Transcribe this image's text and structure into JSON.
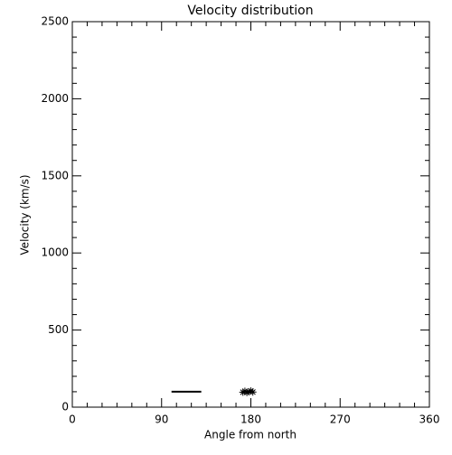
{
  "chart_data": {
    "type": "scatter",
    "title": "Velocity distribution",
    "x_label": "Angle from north",
    "y_label": "Velocity (km/s)",
    "xlim": [
      0,
      360
    ],
    "xticks": [
      0,
      90,
      180,
      270,
      360
    ],
    "ylim": [
      0,
      2500
    ],
    "yticks": [
      0,
      500,
      1000,
      1500,
      2000,
      2500
    ],
    "series": [
      {
        "marker": "line",
        "color": "#000000",
        "x": [
          100,
          130
        ],
        "values": [
          100,
          100
        ]
      },
      {
        "marker": "asterisk",
        "color": "#000000",
        "x": [
          172,
          174,
          176,
          178,
          180,
          182
        ],
        "values": [
          97,
          103,
          95,
          100,
          105,
          98
        ]
      }
    ]
  }
}
